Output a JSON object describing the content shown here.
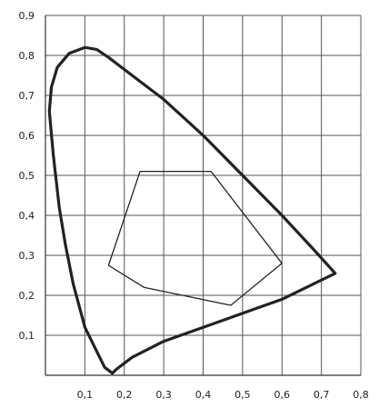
{
  "chart_data": {
    "type": "line",
    "title": "",
    "xlabel": "",
    "ylabel": "",
    "xlim": [
      0,
      0.8
    ],
    "ylim": [
      0,
      0.9
    ],
    "grid": true,
    "xticks": [
      {
        "value": 0.1,
        "label": "0,1"
      },
      {
        "value": 0.2,
        "label": "0,2"
      },
      {
        "value": 0.3,
        "label": "0,3"
      },
      {
        "value": 0.4,
        "label": "0,4"
      },
      {
        "value": 0.5,
        "label": "0,5"
      },
      {
        "value": 0.6,
        "label": "0,6"
      },
      {
        "value": 0.7,
        "label": "0,7"
      },
      {
        "value": 0.8,
        "label": "0,8"
      }
    ],
    "yticks": [
      {
        "value": 0.1,
        "label": "0,1"
      },
      {
        "value": 0.2,
        "label": "0,2"
      },
      {
        "value": 0.3,
        "label": "0,3"
      },
      {
        "value": 0.4,
        "label": "0,4"
      },
      {
        "value": 0.5,
        "label": "0,5"
      },
      {
        "value": 0.6,
        "label": "0,6"
      },
      {
        "value": 0.7,
        "label": "0,7"
      },
      {
        "value": 0.8,
        "label": "0,8"
      },
      {
        "value": 0.9,
        "label": "0,9"
      }
    ],
    "series": [
      {
        "closed": true,
        "style": "thick",
        "points": [
          [
            0.17,
            0.005
          ],
          [
            0.15,
            0.02
          ],
          [
            0.13,
            0.06
          ],
          [
            0.1,
            0.12
          ],
          [
            0.07,
            0.23
          ],
          [
            0.05,
            0.33
          ],
          [
            0.035,
            0.42
          ],
          [
            0.02,
            0.55
          ],
          [
            0.01,
            0.66
          ],
          [
            0.015,
            0.72
          ],
          [
            0.03,
            0.77
          ],
          [
            0.06,
            0.805
          ],
          [
            0.1,
            0.82
          ],
          [
            0.13,
            0.815
          ],
          [
            0.16,
            0.795
          ],
          [
            0.22,
            0.75
          ],
          [
            0.3,
            0.69
          ],
          [
            0.4,
            0.6
          ],
          [
            0.5,
            0.5
          ],
          [
            0.6,
            0.4
          ],
          [
            0.68,
            0.315
          ],
          [
            0.735,
            0.255
          ],
          [
            0.6,
            0.19
          ],
          [
            0.5,
            0.155
          ],
          [
            0.4,
            0.12
          ],
          [
            0.3,
            0.085
          ],
          [
            0.22,
            0.045
          ],
          [
            0.18,
            0.015
          ]
        ]
      },
      {
        "closed": true,
        "style": "thin",
        "points": [
          [
            0.24,
            0.51
          ],
          [
            0.42,
            0.51
          ],
          [
            0.6,
            0.28
          ],
          [
            0.47,
            0.175
          ],
          [
            0.25,
            0.22
          ],
          [
            0.16,
            0.275
          ]
        ]
      }
    ],
    "colors": {
      "background": "#ffffff",
      "ink": "#222222",
      "grid": "#555555"
    }
  }
}
